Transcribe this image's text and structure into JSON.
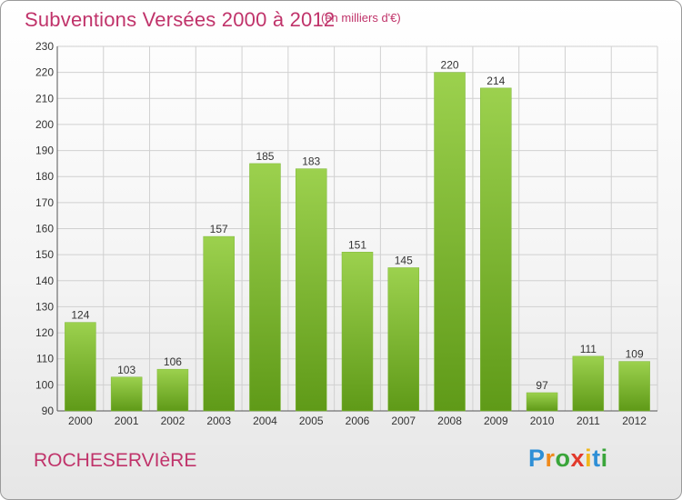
{
  "header": {
    "title": "Subventions Versées 2000 à 2012",
    "subtitle": "(en milliers d'€)"
  },
  "footer": {
    "town": "ROCHESERVIèRE",
    "logo": "Proxiti"
  },
  "colors": {
    "title": "#c0336a",
    "bar_light": "#9cd14e",
    "bar_dark": "#5f9a18",
    "grid": "#d0d0d0",
    "logo_letters": [
      "#2e8fd6",
      "#f08a1c",
      "#3aa53a",
      "#e23a2c",
      "#f0b81c",
      "#2e8fd6",
      "#3aa53a"
    ]
  },
  "chart_data": {
    "type": "bar",
    "title": "Subventions Versées 2000 à 2012",
    "subtitle": "(en milliers d'€)",
    "categories": [
      "2000",
      "2001",
      "2002",
      "2003",
      "2004",
      "2005",
      "2006",
      "2007",
      "2008",
      "2009",
      "2010",
      "2011",
      "2012"
    ],
    "values": [
      124,
      103,
      106,
      157,
      185,
      183,
      151,
      145,
      220,
      214,
      97,
      111,
      109
    ],
    "ylim": [
      90,
      230
    ],
    "yticks": [
      90,
      100,
      110,
      120,
      130,
      140,
      150,
      160,
      170,
      180,
      190,
      200,
      210,
      220,
      230
    ],
    "grid": true,
    "xlabel": "",
    "ylabel": ""
  }
}
